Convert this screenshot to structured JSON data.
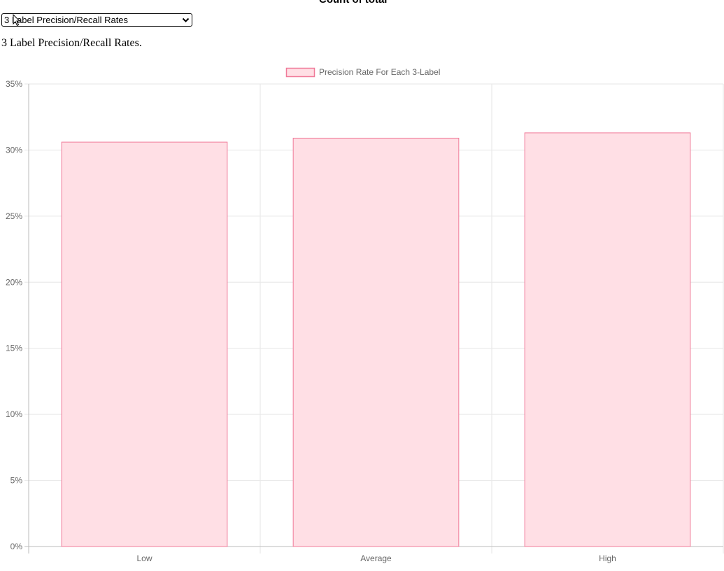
{
  "header": {
    "title": "Count of total"
  },
  "view_select": {
    "selected": "3 Label Precision/Recall Rates",
    "icon": "chevron-down-icon"
  },
  "subtitle": "3 Label Precision/Recall Rates.",
  "colors": {
    "bar_fill": "#ffdfe5",
    "bar_border": "#f07b9a",
    "grid": "#e6e6e6",
    "text": "#666666"
  },
  "chart_data": {
    "type": "bar",
    "categories": [
      "Low",
      "Average",
      "High"
    ],
    "series": [
      {
        "name": "Precision Rate For Each 3-Label",
        "values": [
          30.6,
          30.9,
          31.3
        ]
      }
    ],
    "yticks": [
      "0%",
      "5%",
      "10%",
      "15%",
      "20%",
      "25%",
      "30%",
      "35%"
    ],
    "ylim": [
      0,
      35
    ],
    "ylabel": "",
    "xlabel": "",
    "grid": true,
    "legend": "top-center"
  }
}
